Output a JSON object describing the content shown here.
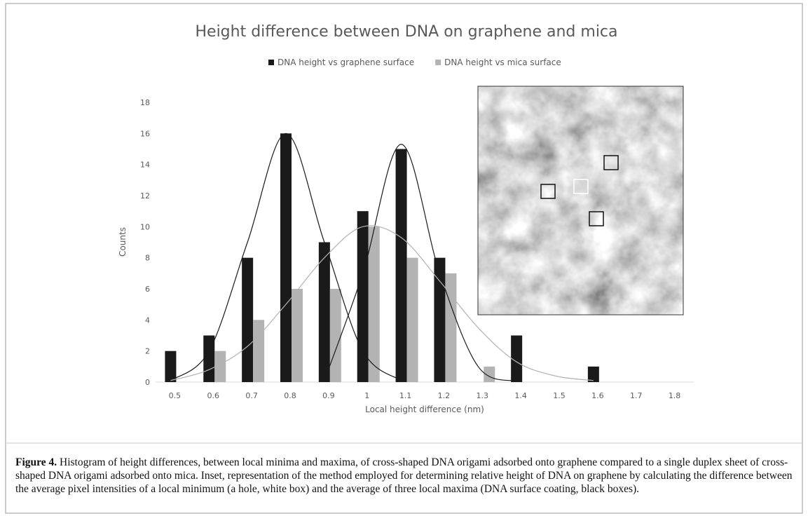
{
  "chart_data": {
    "type": "bar",
    "title": "Height difference between DNA on graphene and mica",
    "x_label": "Local height difference (nm)",
    "y_label": "Counts",
    "categories": [
      "0.5",
      "0.6",
      "0.7",
      "0.8",
      "0.9",
      "1",
      "1.1",
      "1.2",
      "1.3",
      "1.4",
      "1.5",
      "1.6",
      "1.7",
      "1.8"
    ],
    "series": [
      {
        "name": "DNA height vs graphene surface",
        "color": "#1a1a1a",
        "values": [
          2,
          3,
          8,
          16,
          9,
          11,
          15,
          8,
          0,
          3,
          0,
          1,
          0,
          0
        ]
      },
      {
        "name": "DNA height vs mica surface",
        "color": "#b3b3b3",
        "values": [
          0,
          2,
          4,
          6,
          6,
          10,
          8,
          7,
          1,
          0,
          0,
          0,
          0,
          0
        ]
      }
    ],
    "fit_curves": [
      {
        "color": "#1a1a1a",
        "values": [
          0.1,
          2,
          9,
          16,
          9,
          2,
          0.1,
          null,
          null,
          null,
          null,
          null,
          null,
          null
        ]
      },
      {
        "color": "#1a1a1a",
        "values": [
          null,
          null,
          null,
          null,
          0.1,
          7,
          15.3,
          7,
          1,
          0.05,
          null,
          null,
          null,
          null
        ]
      },
      {
        "color": "#b3b3b3",
        "values": [
          0.1,
          0.8,
          2.3,
          5,
          8,
          10,
          9.3,
          6.5,
          3.5,
          1.3,
          0.4,
          0.1,
          null,
          null
        ]
      }
    ],
    "ylim": [
      0,
      18
    ],
    "yticks": [
      0,
      2,
      4,
      6,
      8,
      10,
      12,
      14,
      16,
      18
    ],
    "legend": "top",
    "grid": false
  },
  "caption": {
    "label": "Figure 4.",
    "text": " Histogram of height differences, between local minima and maxima, of cross-shaped DNA origami adsorbed onto graphene compared to a single duplex sheet of cross-shaped DNA origami adsorbed onto mica. Inset, representation of the method employed for determining relative height of DNA on graphene by calculating the difference between the average pixel intensities of a local minimum (a hole, white box) and the average of three local maxima (DNA surface coating, black boxes)."
  }
}
